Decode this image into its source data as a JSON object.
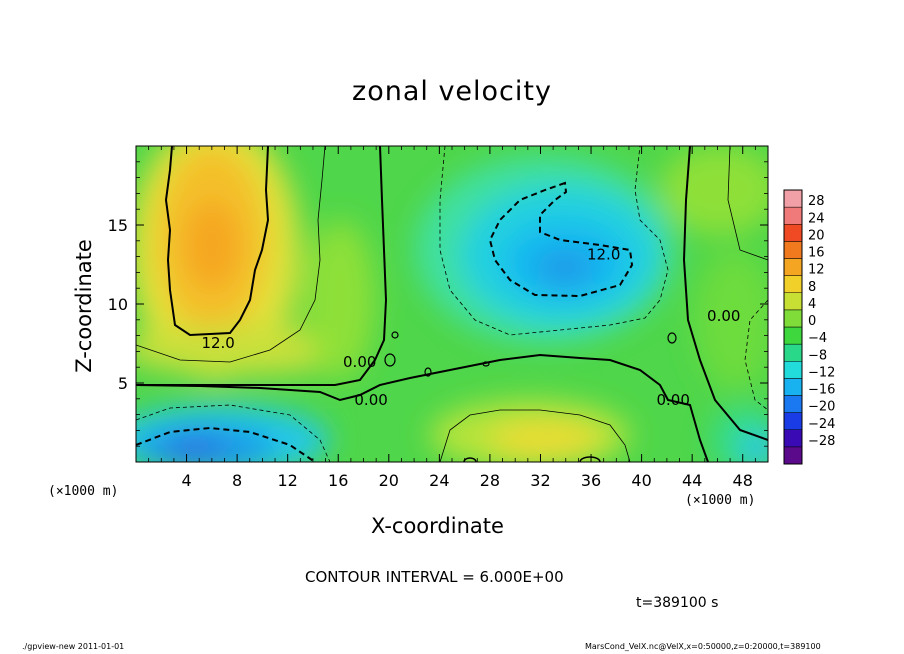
{
  "chart_data": {
    "type": "heatmap",
    "title": "zonal velocity",
    "xlabel": "X-coordinate",
    "ylabel": "Z-coordinate",
    "x_unit_label": "(×1000 m)",
    "xlim": [
      0,
      50
    ],
    "ylim": [
      0,
      20
    ],
    "x_ticks": [
      4,
      8,
      12,
      16,
      20,
      24,
      28,
      32,
      36,
      40,
      44,
      48
    ],
    "y_ticks": [
      5,
      10,
      15
    ],
    "colorbar": {
      "levels": [
        -28,
        -24,
        -20,
        -16,
        -12,
        -8,
        -4,
        0,
        4,
        8,
        12,
        16,
        20,
        24,
        28
      ],
      "labels": [
        "28",
        "24",
        "20",
        "16",
        "12",
        "8",
        "4",
        "0",
        "−4",
        "−8",
        "−12",
        "−16",
        "−20",
        "−24",
        "−28"
      ]
    },
    "contour_labels": [
      {
        "text": "12.0",
        "x": 6.5,
        "z": 7.6
      },
      {
        "text": "12.0",
        "x": 37.0,
        "z": 13.2
      },
      {
        "text": "0.00",
        "x": 17.7,
        "z": 6.4
      },
      {
        "text": "0.00",
        "x": 18.6,
        "z": 4.0
      },
      {
        "text": "0.00",
        "x": 46.5,
        "z": 9.3
      },
      {
        "text": "0.00",
        "x": 42.5,
        "z": 4.0
      }
    ],
    "features": [
      {
        "label": "warm max",
        "x": 6,
        "z": 14,
        "value": 14
      },
      {
        "label": "cold min",
        "x": 33,
        "z": 12,
        "value": -14
      },
      {
        "label": "cold min",
        "x": 5,
        "z": 1.5,
        "value": -14
      },
      {
        "label": "warm max",
        "x": 33,
        "z": 2.5,
        "value": 10
      }
    ]
  },
  "text": {
    "contour_interval": "CONTOUR INTERVAL = 6.000E+00",
    "time": "t=389100 s",
    "footer_left": "./gpview-new 2011-01-01",
    "footer_right": "MarsCond_VelX.nc@VelX,x=0:50000,z=0:20000,t=389100"
  }
}
